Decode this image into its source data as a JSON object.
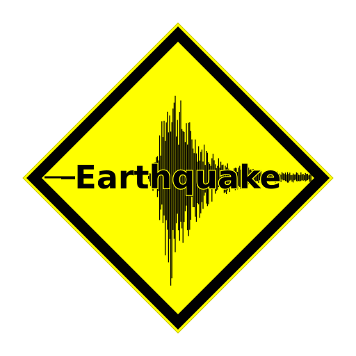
{
  "sign": {
    "label": "Earthquake",
    "icon": "seismograph-waveform-icon",
    "colors": {
      "background": "#ffffff",
      "fill": "#ffff00",
      "border": "#000000",
      "waveform": "#000000",
      "label": "#000000"
    }
  }
}
